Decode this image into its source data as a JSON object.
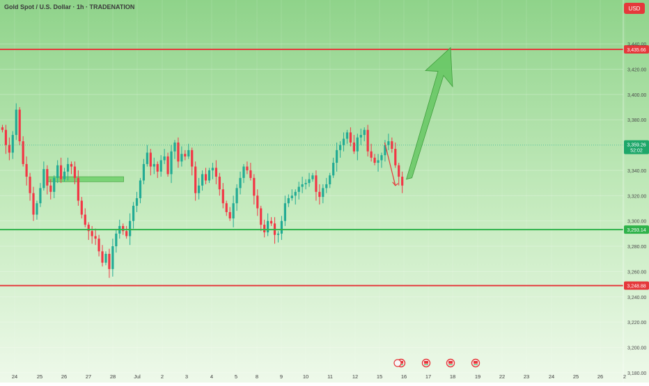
{
  "header": {
    "title": "Gold Spot / U.S. Dollar · 1h · TRADENATION",
    "currency": "USD"
  },
  "colors": {
    "bg_top": "#8fd38a",
    "bg_bottom": "#eef9ea",
    "candle_up": "#22ab94",
    "candle_down": "#f23645",
    "resistance": "#e5383b",
    "support": "#2fb24a",
    "zone": "#6fcf6a",
    "arrow_up": "#5cc35a",
    "arrow_down": "#e5383b"
  },
  "chart_data": {
    "type": "candlestick",
    "title": "Gold Spot / U.S. Dollar · 1h · TRADENATION",
    "x_labels": [
      "24",
      "25",
      "26",
      "27",
      "28",
      "Jul",
      "2",
      "3",
      "4",
      "5",
      "8",
      "9",
      "10",
      "11",
      "12",
      "15",
      "16",
      "17",
      "18",
      "19",
      "22",
      "23",
      "24",
      "25",
      "26",
      "2"
    ],
    "y_ticks": [
      "3,440.00",
      "3,420.00",
      "3,400.00",
      "3,380.00",
      "3,340.00",
      "3,320.00",
      "3,300.00",
      "3,280.00",
      "3,260.00",
      "3,240.00",
      "3,220.00",
      "3,200.00",
      "3,180.00"
    ],
    "ylim": [
      3175,
      3456
    ],
    "current_price": "3,359.26",
    "countdown": "52:02",
    "levels": [
      {
        "name": "resistance-top",
        "price": 3435.66,
        "label": "3,435.66",
        "color": "#e5383b"
      },
      {
        "name": "support-mid",
        "price": 3293.14,
        "label": "3,293.14",
        "color": "#2fb24a"
      },
      {
        "name": "support-low",
        "price": 3248.88,
        "label": "3,248.88",
        "color": "#e5383b"
      }
    ],
    "zone": {
      "bar_start": 13.6,
      "bar_end": 17.5,
      "price_low": 3331,
      "price_high": 3335
    },
    "closes": [
      3372,
      3360,
      3354,
      3368,
      3388,
      3363,
      3345,
      3335,
      3322,
      3305,
      3314,
      3326,
      3341,
      3328,
      3323,
      3334,
      3344,
      3333,
      3339,
      3345,
      3343,
      3334,
      3316,
      3305,
      3297,
      3292,
      3288,
      3286,
      3276,
      3267,
      3274,
      3262,
      3280,
      3290,
      3296,
      3292,
      3288,
      3300,
      3312,
      3318,
      3332,
      3345,
      3354,
      3343,
      3345,
      3339,
      3348,
      3351,
      3337,
      3355,
      3362,
      3347,
      3353,
      3351,
      3356,
      3343,
      3322,
      3328,
      3337,
      3332,
      3340,
      3342,
      3335,
      3325,
      3314,
      3307,
      3302,
      3314,
      3326,
      3334,
      3343,
      3340,
      3334,
      3320,
      3310,
      3297,
      3291,
      3300,
      3298,
      3289,
      3290,
      3300,
      3314,
      3318,
      3320,
      3323,
      3327,
      3329,
      3330,
      3333,
      3336,
      3323,
      3319,
      3326,
      3329,
      3336,
      3346,
      3356,
      3360,
      3365,
      3370,
      3362,
      3355,
      3366,
      3368,
      3372,
      3355,
      3350,
      3346,
      3348,
      3352,
      3360,
      3363,
      3357,
      3344,
      3335,
      3328
    ],
    "annotations": {
      "down_arrow": {
        "from_bar": 111.4,
        "from_price": 3362,
        "to_bar": 114.5,
        "to_price": 3328
      },
      "up_arrow": {
        "from_bar": 118.5,
        "from_price": 3333,
        "tip_bar": 130.5,
        "tip_price": 3437
      }
    }
  },
  "events": [
    {
      "x_label": "16",
      "icon": "economic-event-flag-icon"
    },
    {
      "x_label": "17",
      "icon": "economic-event-flag-icon"
    },
    {
      "x_label": "18",
      "icon": "economic-event-flag-icon"
    },
    {
      "x_label": "19",
      "icon": "economic-event-flag-icon"
    }
  ]
}
